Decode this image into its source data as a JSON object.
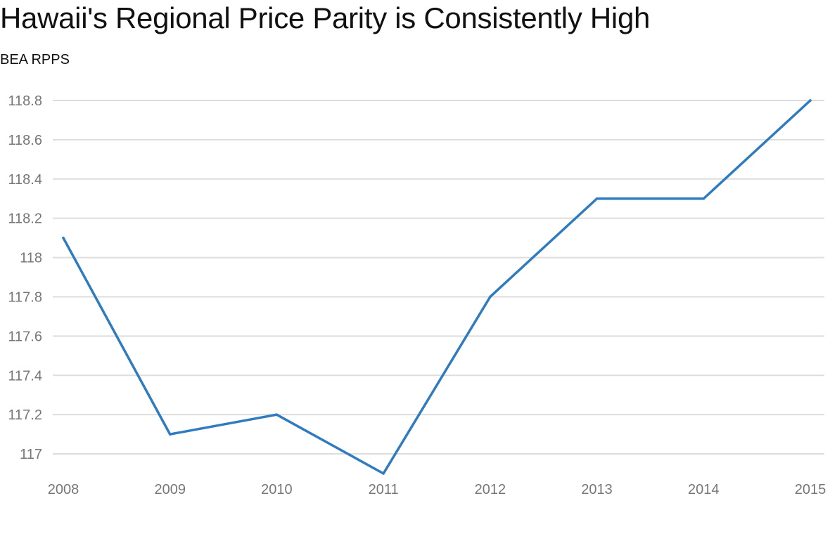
{
  "chart_data": {
    "type": "line",
    "title": "Hawaii's Regional Price Parity is Consistently High",
    "subtitle": "BEA RPPS",
    "xlabel": "",
    "ylabel": "",
    "x": [
      "2008",
      "2009",
      "2010",
      "2011",
      "2012",
      "2013",
      "2014",
      "2015"
    ],
    "series": [
      {
        "values": [
          118.1,
          117.1,
          117.2,
          116.9,
          117.8,
          118.3,
          118.3,
          118.8
        ],
        "color": "#2f7bbf"
      }
    ],
    "yticks": [
      117,
      117.2,
      117.4,
      117.6,
      117.8,
      118,
      118.2,
      118.4,
      118.6,
      118.8
    ],
    "ytick_labels": [
      "117",
      "117.2",
      "117.4",
      "117.6",
      "117.8",
      "118",
      "118.2",
      "118.4",
      "118.6",
      "118.8"
    ],
    "ylim": [
      116.9,
      118.8
    ],
    "grid": true,
    "legend": "none",
    "colors": {
      "grid": "#dddddd",
      "tick_text": "#777777",
      "title_text": "#111111"
    }
  }
}
